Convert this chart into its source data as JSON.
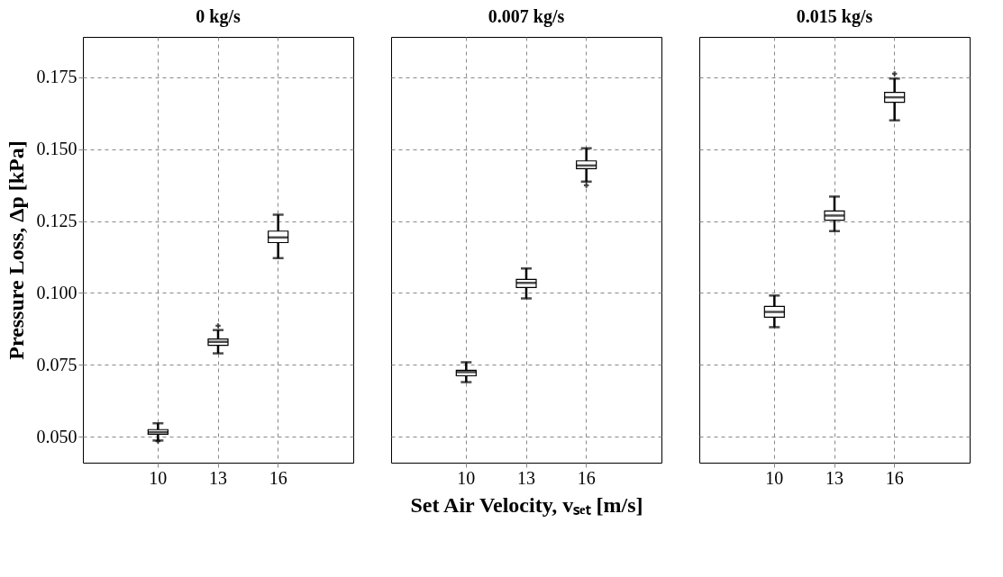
{
  "chart_data": [
    {
      "type": "box",
      "title": "0 kg/s",
      "ylabel": "Pressure Loss, Δp [kPa]",
      "categories": [
        "10",
        "13",
        "16"
      ],
      "ylim": [
        0.041,
        0.189
      ],
      "yticks": [
        {
          "value": 0.05,
          "label": "0.050"
        },
        {
          "value": 0.075,
          "label": "0.075"
        },
        {
          "value": 0.1,
          "label": "0.100"
        },
        {
          "value": 0.125,
          "label": "0.125"
        },
        {
          "value": 0.15,
          "label": "0.150"
        },
        {
          "value": 0.175,
          "label": "0.175"
        }
      ],
      "grid": true,
      "boxes": [
        {
          "low": 0.0487,
          "q1": 0.0509,
          "median": 0.0516,
          "q3": 0.0525,
          "high": 0.0547,
          "outliers": [
            0.0485
          ]
        },
        {
          "low": 0.079,
          "q1": 0.0818,
          "median": 0.083,
          "q3": 0.084,
          "high": 0.0871,
          "outliers": [
            0.0886
          ]
        },
        {
          "low": 0.1121,
          "q1": 0.1175,
          "median": 0.1193,
          "q3": 0.1215,
          "high": 0.1272
        }
      ]
    },
    {
      "type": "box",
      "title": "0.007 kg/s",
      "xlabel": "Set Air Velocity, vₛₑₜ [m/s]",
      "categories": [
        "10",
        "13",
        "16"
      ],
      "ylim": [
        0.041,
        0.189
      ],
      "tick_labels": "x",
      "grid": true,
      "boxes": [
        {
          "low": 0.069,
          "q1": 0.0712,
          "median": 0.0725,
          "q3": 0.0731,
          "high": 0.0759
        },
        {
          "low": 0.0981,
          "q1": 0.1019,
          "median": 0.1035,
          "q3": 0.1047,
          "high": 0.1085
        },
        {
          "low": 0.1387,
          "q1": 0.1432,
          "median": 0.1443,
          "q3": 0.1459,
          "high": 0.1503,
          "outliers": [
            0.1374
          ]
        }
      ]
    },
    {
      "type": "box",
      "title": "0.015 kg/s",
      "categories": [
        "10",
        "13",
        "16"
      ],
      "ylim": [
        0.041,
        0.189
      ],
      "tick_labels": "x",
      "grid": true,
      "boxes": [
        {
          "low": 0.0881,
          "q1": 0.0916,
          "median": 0.0934,
          "q3": 0.0953,
          "high": 0.0991
        },
        {
          "low": 0.1215,
          "q1": 0.1253,
          "median": 0.1269,
          "q3": 0.1285,
          "high": 0.1335
        },
        {
          "low": 0.16,
          "q1": 0.1663,
          "median": 0.168,
          "q3": 0.1697,
          "high": 0.1745,
          "outliers": [
            0.1762
          ]
        }
      ]
    }
  ]
}
